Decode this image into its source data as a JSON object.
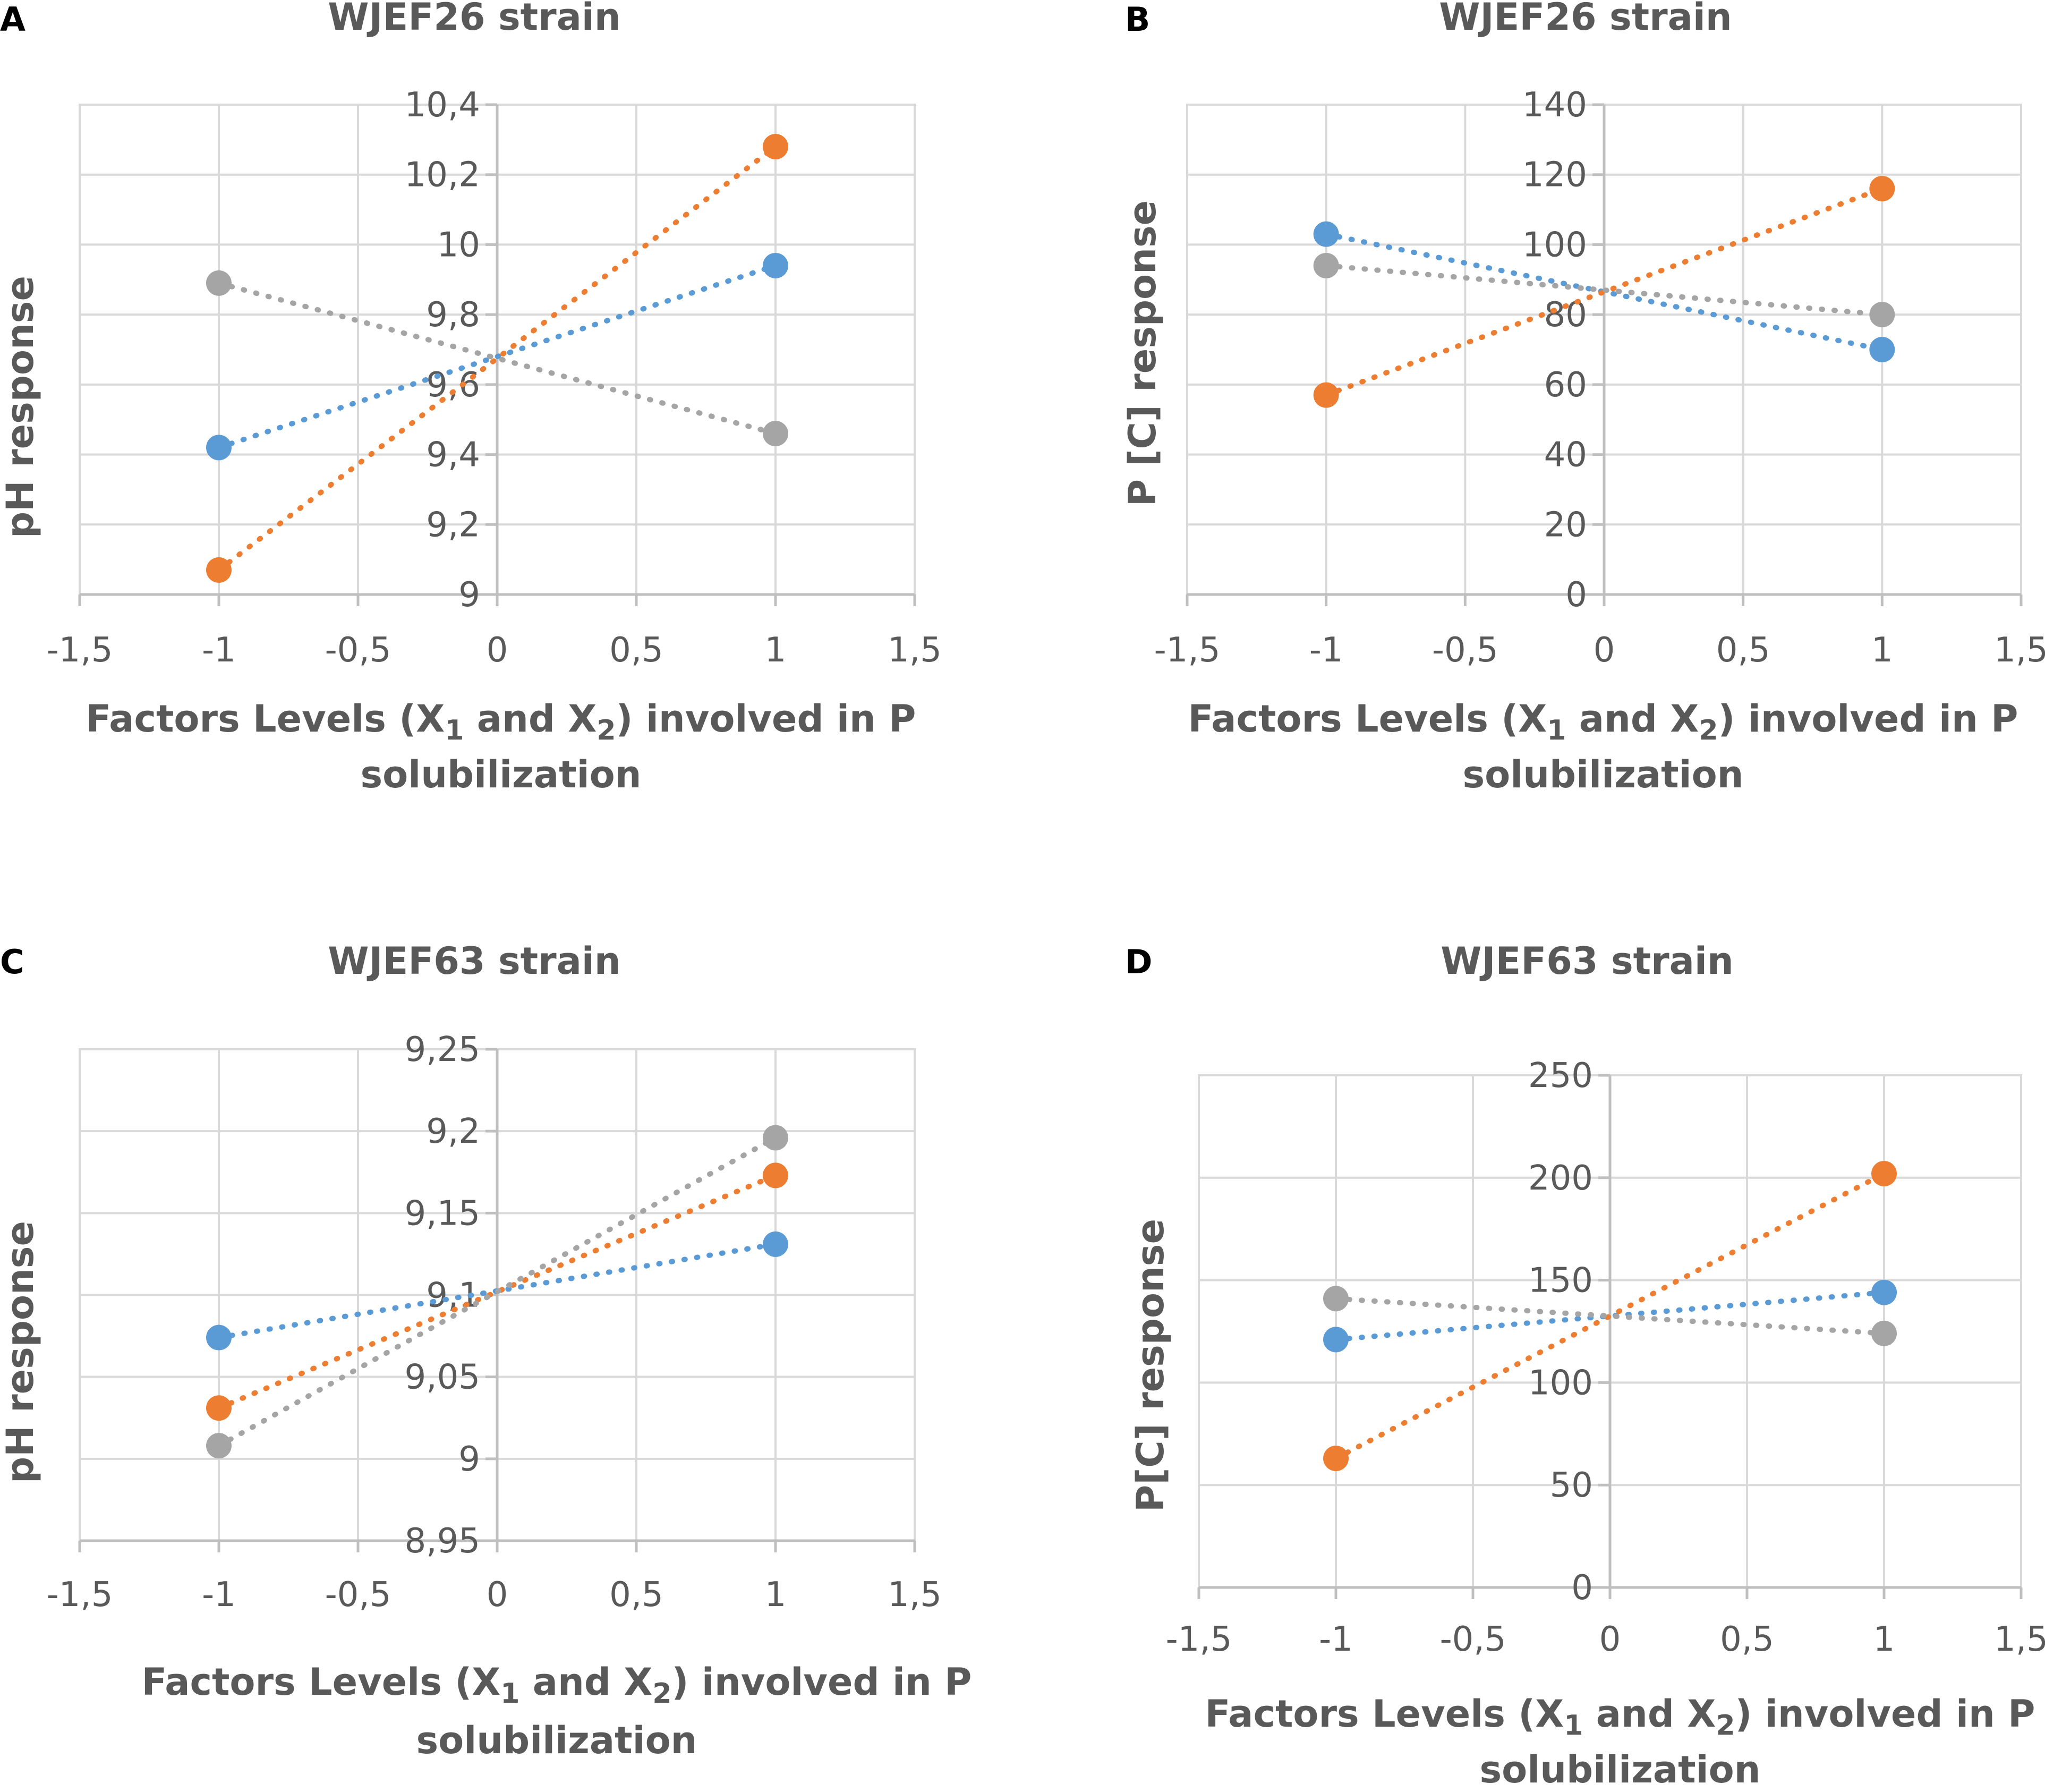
{
  "colors": {
    "blue": "#5b9bd5",
    "orange": "#ed7d31",
    "gray": "#a5a5a5",
    "text": "#595959",
    "grid": "#d9d9d9"
  },
  "x_axis_title_line1": "Factors Levels (X",
  "x_axis_title_sub1": "1",
  "x_axis_title_mid": " and X",
  "x_axis_title_sub2": "2",
  "x_axis_title_end": ") involved in P",
  "x_axis_title_line2": "solubilization",
  "chart_data": [
    {
      "id": "A",
      "panel_label": "A",
      "type": "line",
      "title": "WJEF26 strain",
      "ylabel": "pH response",
      "xlim": [
        -1.5,
        1.5
      ],
      "ylim": [
        9,
        10.4
      ],
      "xticks": [
        -1.5,
        -1,
        -0.5,
        0,
        0.5,
        1,
        1.5
      ],
      "xtick_labels": [
        "-1,5",
        "-1",
        "-0,5",
        "0",
        "0,5",
        "1",
        "1,5"
      ],
      "yticks": [
        9,
        9.2,
        9.4,
        9.6,
        9.8,
        10,
        10.2,
        10.4
      ],
      "ytick_labels": [
        "9",
        "9,2",
        "9,4",
        "9,6",
        "9,8",
        "10",
        "10,2",
        "10,4"
      ],
      "series": [
        {
          "name": "blue",
          "color_key": "blue",
          "x": [
            -1,
            1
          ],
          "y": [
            9.42,
            9.94
          ]
        },
        {
          "name": "orange",
          "color_key": "orange",
          "x": [
            -1,
            1
          ],
          "y": [
            9.07,
            10.28
          ]
        },
        {
          "name": "gray",
          "color_key": "gray",
          "x": [
            -1,
            1
          ],
          "y": [
            9.89,
            9.46
          ]
        }
      ]
    },
    {
      "id": "B",
      "panel_label": "B",
      "type": "line",
      "title": "WJEF26 strain",
      "ylabel": "P [C] response",
      "xlim": [
        -1.5,
        1.5
      ],
      "ylim": [
        0,
        140
      ],
      "xticks": [
        -1.5,
        -1,
        -0.5,
        0,
        0.5,
        1,
        1.5
      ],
      "xtick_labels": [
        "-1,5",
        "-1",
        "-0,5",
        "0",
        "0,5",
        "1",
        "1,5"
      ],
      "yticks": [
        0,
        20,
        40,
        60,
        80,
        100,
        120,
        140
      ],
      "ytick_labels": [
        "0",
        "20",
        "40",
        "60",
        "80",
        "100",
        "120",
        "140"
      ],
      "series": [
        {
          "name": "blue",
          "color_key": "blue",
          "x": [
            -1,
            1
          ],
          "y": [
            103,
            70
          ]
        },
        {
          "name": "orange",
          "color_key": "orange",
          "x": [
            -1,
            1
          ],
          "y": [
            57,
            116
          ]
        },
        {
          "name": "gray",
          "color_key": "gray",
          "x": [
            -1,
            1
          ],
          "y": [
            94,
            80
          ]
        }
      ]
    },
    {
      "id": "C",
      "panel_label": "C",
      "type": "line",
      "title": "WJEF63 strain",
      "ylabel": "pH response",
      "xlim": [
        -1.5,
        1.5
      ],
      "ylim": [
        8.95,
        9.25
      ],
      "xticks": [
        -1.5,
        -1,
        -0.5,
        0,
        0.5,
        1,
        1.5
      ],
      "xtick_labels": [
        "-1,5",
        "-1",
        "-0,5",
        "0",
        "0,5",
        "1",
        "1,5"
      ],
      "yticks": [
        8.95,
        9,
        9.05,
        9.1,
        9.15,
        9.2,
        9.25
      ],
      "ytick_labels": [
        "8,95",
        "9",
        "9,05",
        "9,1",
        "9,15",
        "9,2",
        "9,25"
      ],
      "series": [
        {
          "name": "blue",
          "color_key": "blue",
          "x": [
            -1,
            1
          ],
          "y": [
            9.074,
            9.131
          ]
        },
        {
          "name": "orange",
          "color_key": "orange",
          "x": [
            -1,
            1
          ],
          "y": [
            9.031,
            9.173
          ]
        },
        {
          "name": "gray",
          "color_key": "gray",
          "x": [
            -1,
            1
          ],
          "y": [
            9.008,
            9.196
          ]
        }
      ]
    },
    {
      "id": "D",
      "panel_label": "D",
      "type": "line",
      "title": "WJEF63 strain",
      "ylabel": "P[C] response",
      "xlim": [
        -1.5,
        1.5
      ],
      "ylim": [
        0,
        250
      ],
      "xticks": [
        -1.5,
        -1,
        -0.5,
        0,
        0.5,
        1,
        1.5
      ],
      "xtick_labels": [
        "-1,5",
        "-1",
        "-0,5",
        "0",
        "0,5",
        "1",
        "1,5"
      ],
      "yticks": [
        0,
        50,
        100,
        150,
        200,
        250
      ],
      "ytick_labels": [
        "0",
        "50",
        "100",
        "150",
        "200",
        "250"
      ],
      "series": [
        {
          "name": "blue",
          "color_key": "blue",
          "x": [
            -1,
            1
          ],
          "y": [
            121,
            144
          ]
        },
        {
          "name": "orange",
          "color_key": "orange",
          "x": [
            -1,
            1
          ],
          "y": [
            63,
            202
          ]
        },
        {
          "name": "gray",
          "color_key": "gray",
          "x": [
            -1,
            1
          ],
          "y": [
            141,
            124
          ]
        }
      ]
    }
  ]
}
